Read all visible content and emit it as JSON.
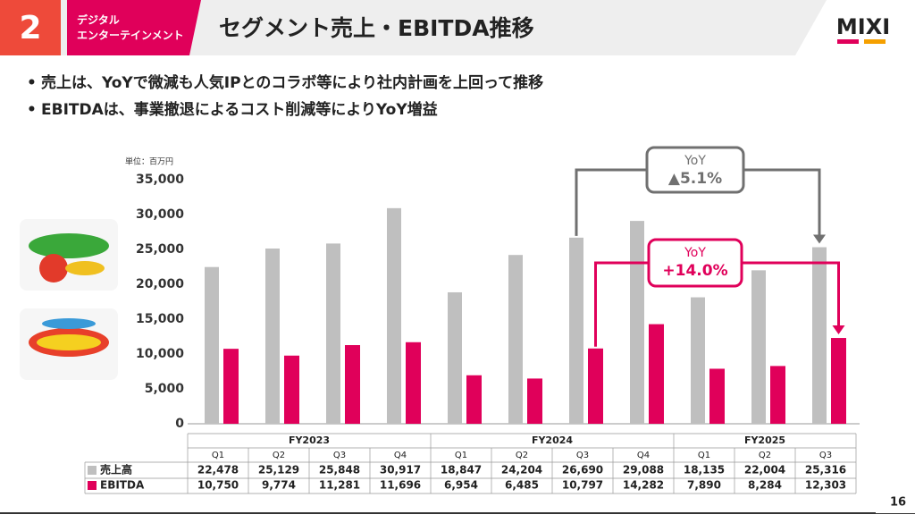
{
  "header": {
    "number": "2",
    "section": [
      "デジタル",
      "エンターテインメント"
    ],
    "title": "セグメント売上・EBITDA推移",
    "logo": "MIXI"
  },
  "bullets": [
    "売上は、YoYで微減も人気IPとのコラボ等により社内計画を上回って推移",
    "EBITDAは、事業撤退によるコスト削減等によりYoY増益"
  ],
  "page_number": "16",
  "chart_data": {
    "type": "bar",
    "unit_label": "単位：百万円",
    "groups": [
      {
        "name": "FY2023",
        "categories": [
          "Q1",
          "Q2",
          "Q3",
          "Q4"
        ]
      },
      {
        "name": "FY2024",
        "categories": [
          "Q1",
          "Q2",
          "Q3",
          "Q4"
        ]
      },
      {
        "name": "FY2025",
        "categories": [
          "Q1",
          "Q2",
          "Q3"
        ]
      }
    ],
    "series": [
      {
        "name": "売上高",
        "color": "#bfbfbf",
        "values": [
          22478,
          25129,
          25848,
          30917,
          18847,
          24204,
          26690,
          29088,
          18135,
          22004,
          25316
        ],
        "value_labels": [
          "22,478",
          "25,129",
          "25,848",
          "30,917",
          "18,847",
          "24,204",
          "26,690",
          "29,088",
          "18,135",
          "22,004",
          "25,316"
        ]
      },
      {
        "name": "EBITDA",
        "color": "#e0005a",
        "values": [
          10750,
          9774,
          11281,
          11696,
          6954,
          6485,
          10797,
          14282,
          7890,
          8284,
          12303
        ],
        "value_labels": [
          "10,750",
          "9,774",
          "11,281",
          "11,696",
          "6,954",
          "6,485",
          "10,797",
          "14,282",
          "7,890",
          "8,284",
          "12,303"
        ]
      }
    ],
    "ylim": [
      0,
      35000
    ],
    "yticks": [
      0,
      {
        "value": 5000,
        "label": "5,000"
      },
      {
        "value": 10000,
        "label": "10,000"
      },
      {
        "value": 15000,
        "label": "15,000"
      },
      {
        "value": 20000,
        "label": "20,000"
      },
      {
        "value": 25000,
        "label": "25,000"
      },
      {
        "value": 30000,
        "label": "30,000"
      },
      {
        "value": 35000,
        "label": "35,000"
      }
    ],
    "annotations": [
      {
        "label": "YoY",
        "change": "▲5.1%",
        "color": "#707070"
      },
      {
        "label": "YoY",
        "change": "+14.0%",
        "color": "#e0005a"
      }
    ]
  }
}
